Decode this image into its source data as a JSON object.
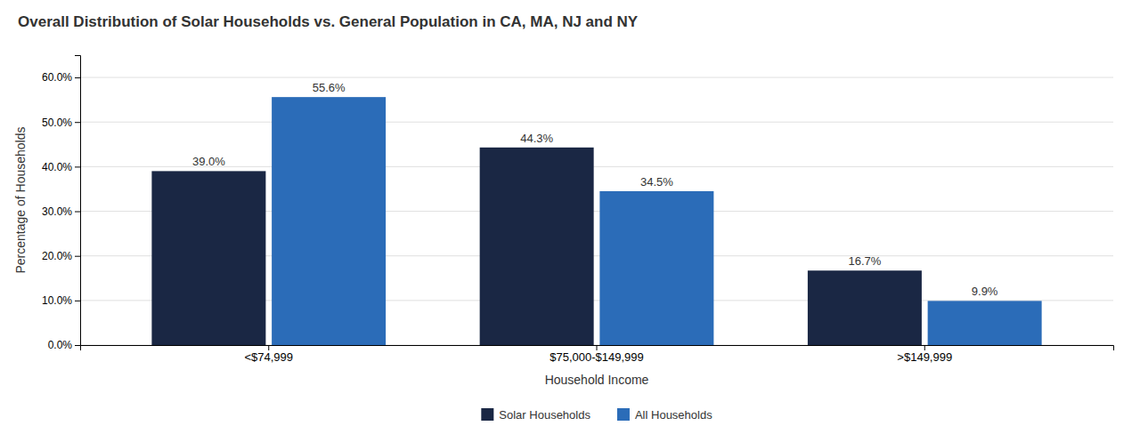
{
  "chart_data": {
    "type": "bar",
    "title": "Overall Distribution of Solar Households vs. General Population in CA, MA, NJ and NY",
    "xlabel": "Household Income",
    "ylabel": "Percentage of Households",
    "categories": [
      "<$74,999",
      "$75,000-$149,999",
      ">$149,999"
    ],
    "series": [
      {
        "name": "Solar Households",
        "color": "#1a2744",
        "values": [
          39.0,
          44.3,
          16.7
        ],
        "value_labels": [
          "39.0%",
          "44.3%",
          "16.7%"
        ]
      },
      {
        "name": "All Households",
        "color": "#2b6cb8",
        "values": [
          55.6,
          34.5,
          9.9
        ],
        "value_labels": [
          "55.6%",
          "34.5%",
          "9.9%"
        ]
      }
    ],
    "ylim": [
      0,
      65
    ],
    "yticks": [
      {
        "value": 0,
        "label": "0.0%"
      },
      {
        "value": 10,
        "label": "10.0%"
      },
      {
        "value": 20,
        "label": "20.0%"
      },
      {
        "value": 30,
        "label": "30.0%"
      },
      {
        "value": 40,
        "label": "40.0%"
      },
      {
        "value": 50,
        "label": "50.0%"
      },
      {
        "value": 60,
        "label": "60.0%"
      }
    ],
    "grid": true,
    "data_labels": true,
    "legend": "bottom"
  }
}
